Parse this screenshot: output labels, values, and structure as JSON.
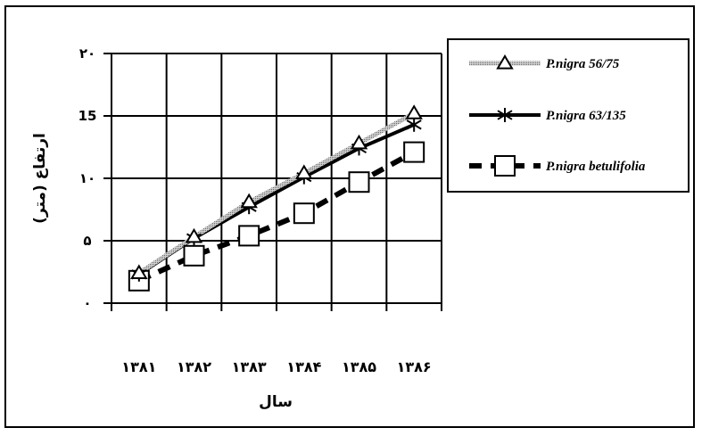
{
  "chart_data": {
    "type": "line",
    "title": "",
    "xlabel": "سال",
    "ylabel": "ارتفاع (متر)",
    "categories": [
      "۱۳۸۱",
      "۱۳۸۲",
      "۱۳۸۳",
      "۱۳۸۴",
      "۱۳۸۵",
      "۱۳۸۶"
    ],
    "y_ticks": [
      "۰",
      "۵",
      "۱۰",
      "15",
      "۲۰"
    ],
    "y_tick_values": [
      0,
      5,
      10,
      15,
      20
    ],
    "ylim": [
      0,
      20
    ],
    "grid": true,
    "legend_position": "right",
    "series": [
      {
        "name": "P.nigra 56/75",
        "values": [
          2.4,
          5.3,
          8.1,
          10.4,
          12.8,
          15.2
        ],
        "marker": "triangle",
        "line": "dotted-gray",
        "color": "#9a9a9a"
      },
      {
        "name": "P.nigra 63/135",
        "values": [
          2.3,
          5.2,
          7.7,
          10.1,
          12.4,
          14.3
        ],
        "marker": "asterisk",
        "line": "solid-black",
        "color": "#000000"
      },
      {
        "name": "P.nigra betulifolia",
        "values": [
          1.8,
          3.8,
          5.4,
          7.2,
          9.7,
          12.1
        ],
        "marker": "square",
        "line": "dashed-black",
        "color": "#000000"
      }
    ]
  }
}
